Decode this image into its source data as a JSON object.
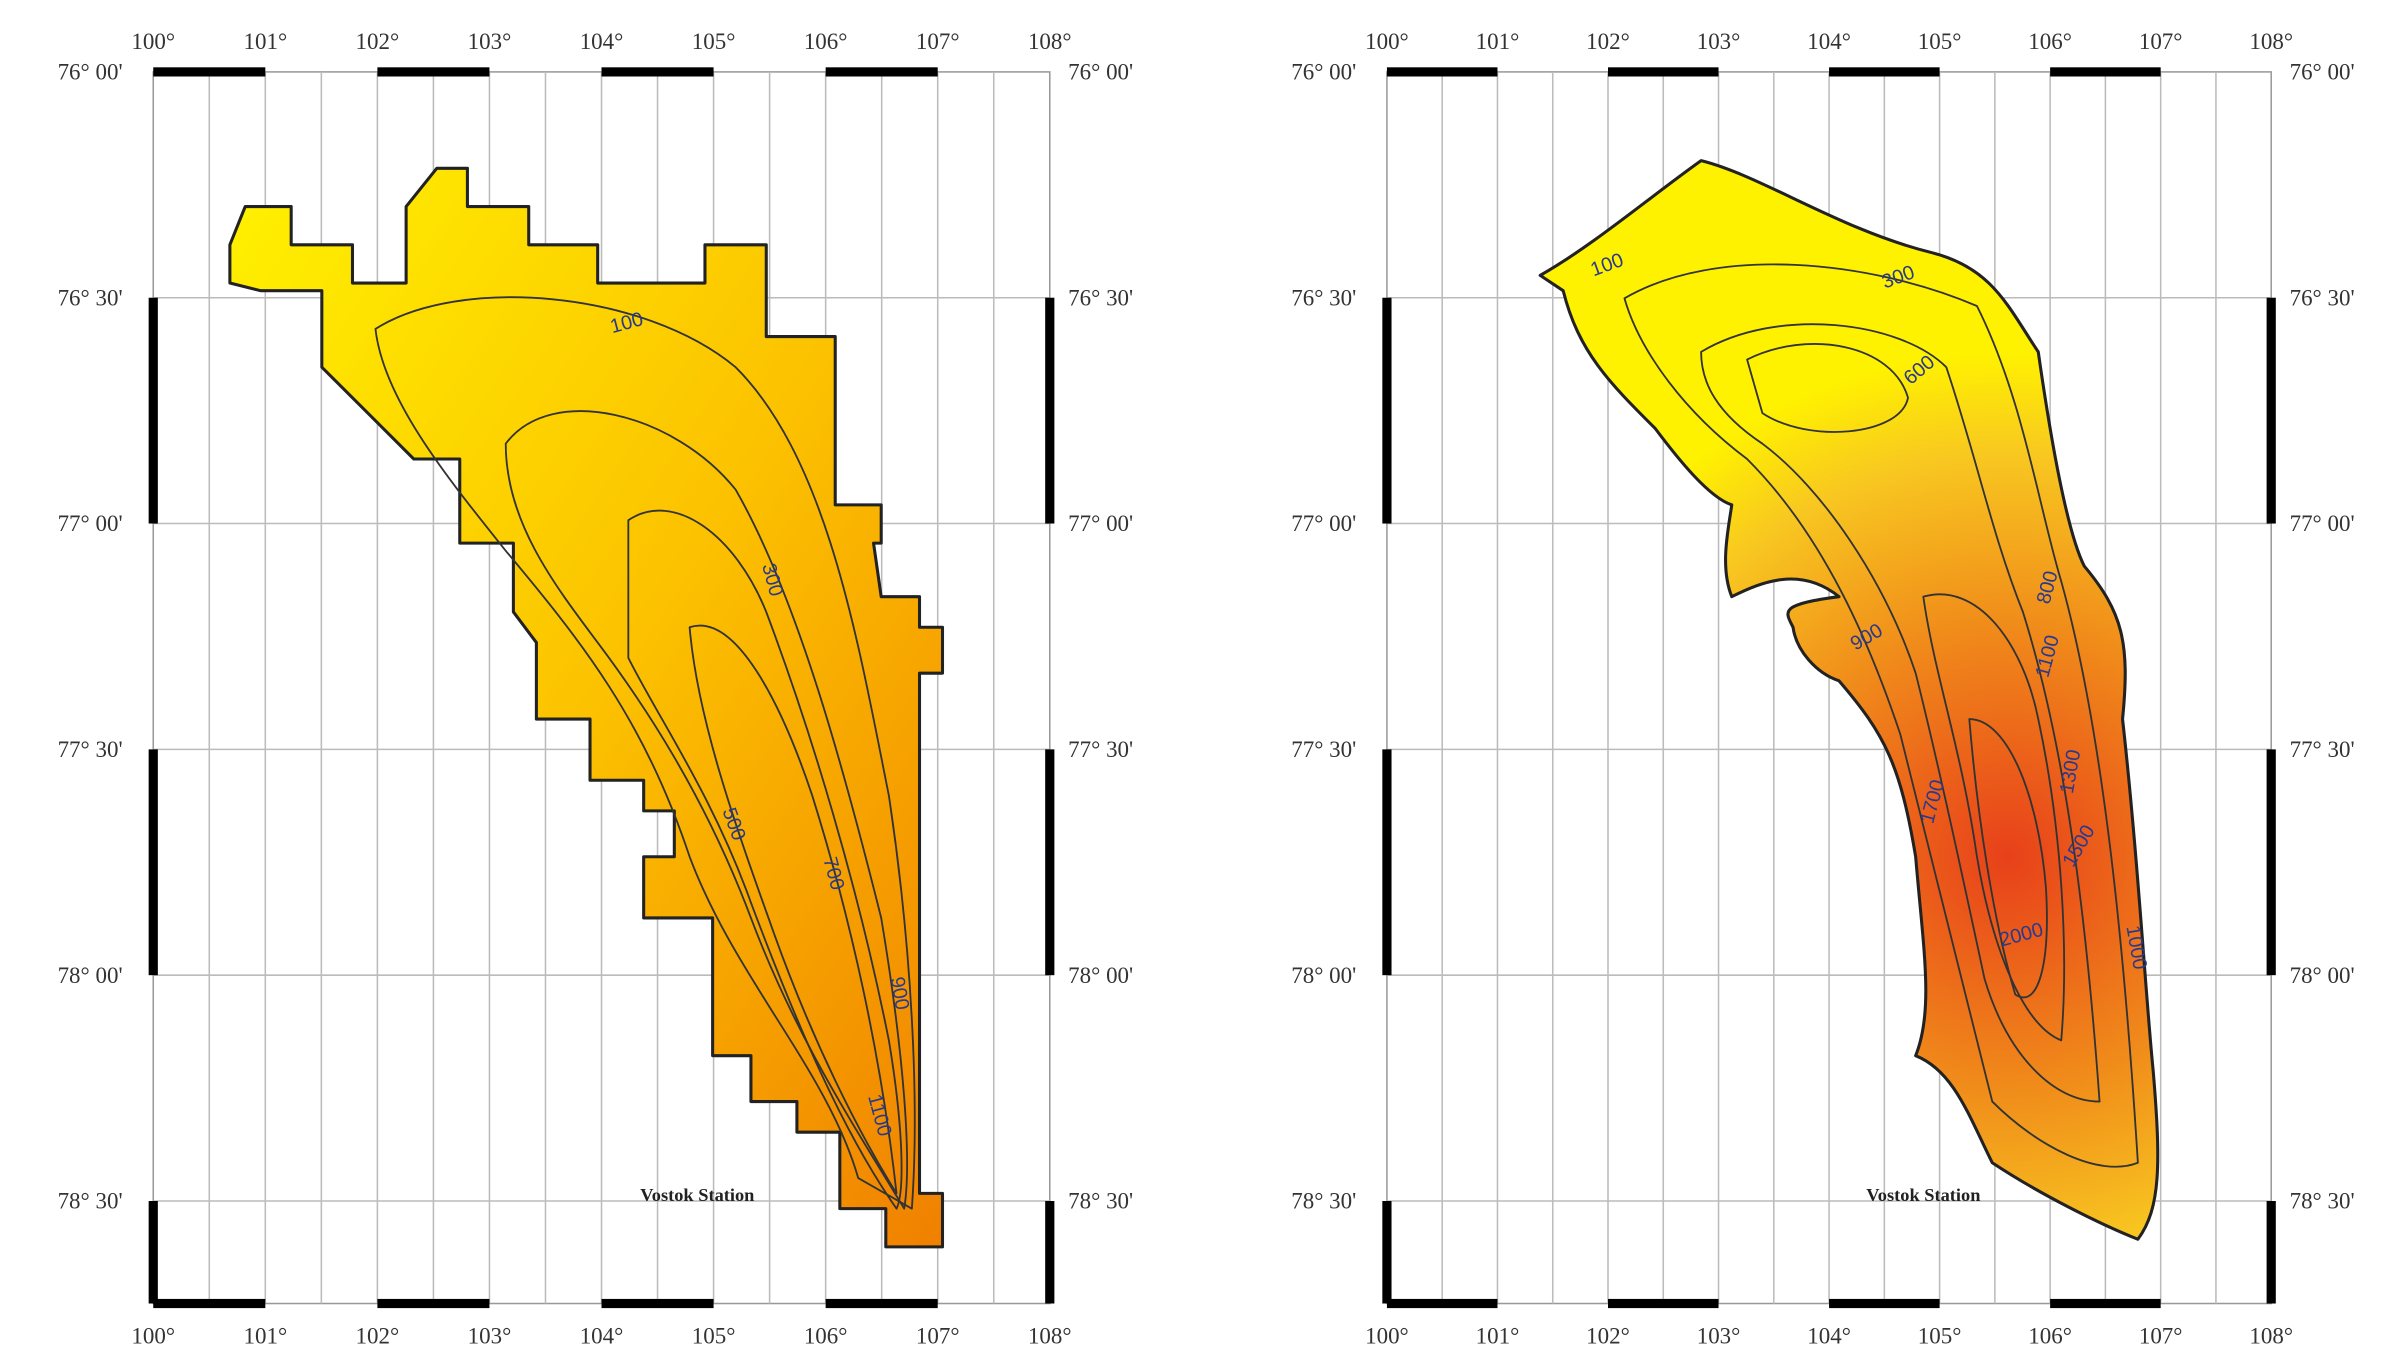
{
  "maps": [
    {
      "longitude_labels": [
        "100°",
        "101°",
        "102°",
        "103°",
        "104°",
        "105°",
        "106°",
        "107°",
        "108°"
      ],
      "latitude_labels": [
        "76° 00'",
        "76° 30'",
        "77° 00'",
        "77° 30'",
        "78° 00'",
        "78° 30'"
      ],
      "contour_labels": [
        "100",
        "300",
        "500",
        "700",
        "900",
        "1100"
      ],
      "station_label": "Vostok Station"
    },
    {
      "longitude_labels": [
        "100°",
        "101°",
        "102°",
        "103°",
        "104°",
        "105°",
        "106°",
        "107°",
        "108°"
      ],
      "latitude_labels": [
        "76° 00'",
        "76° 30'",
        "77° 00'",
        "77° 30'",
        "78° 00'",
        "78° 30'"
      ],
      "contour_labels": [
        "100",
        "300",
        "600",
        "800",
        "900",
        "1100",
        "1300",
        "1500",
        "1700",
        "2000",
        "1000"
      ],
      "station_label": "Vostok Station"
    }
  ]
}
